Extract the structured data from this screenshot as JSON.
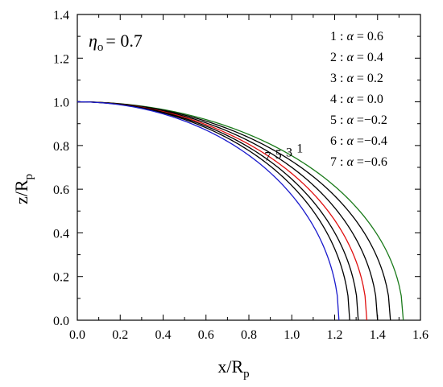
{
  "chart_data": {
    "type": "line",
    "xlabel": "x/R",
    "xlabel_sub": "p",
    "ylabel": "z/R",
    "ylabel_sub": "p",
    "xlim": [
      0.0,
      1.6
    ],
    "ylim": [
      0.0,
      1.4
    ],
    "xticks": [
      "0.0",
      "0.2",
      "0.4",
      "0.6",
      "0.8",
      "1.0",
      "1.2",
      "1.4",
      "1.6"
    ],
    "yticks": [
      "0.0",
      "0.2",
      "0.4",
      "0.6",
      "0.8",
      "1.0",
      "1.2",
      "1.4"
    ],
    "grid": false,
    "annotation": {
      "symbol": "η",
      "subscript": "o",
      "value": "= 0.7"
    },
    "legend": [
      {
        "id": "1",
        "sep": ":",
        "symbol": "α",
        "text": "=  0.6"
      },
      {
        "id": "2",
        "sep": ":",
        "symbol": "α",
        "text": "=  0.4"
      },
      {
        "id": "3",
        "sep": ":",
        "symbol": "α",
        "text": "=  0.2"
      },
      {
        "id": "4",
        "sep": ":",
        "symbol": "α",
        "text": "=  0.0"
      },
      {
        "id": "5",
        "sep": ":",
        "symbol": "α",
        "text": "=−0.2"
      },
      {
        "id": "6",
        "sep": ":",
        "symbol": "α",
        "text": "=−0.4"
      },
      {
        "id": "7",
        "sep": ":",
        "symbol": "α",
        "text": "=−0.6"
      }
    ],
    "series": [
      {
        "label": "1",
        "alpha": 0.6,
        "x_end": 1.52,
        "color": "#1a7a1a",
        "curve_label": "1",
        "label_at_x": 1.0
      },
      {
        "label": "2",
        "alpha": 0.4,
        "x_end": 1.46,
        "color": "#000000"
      },
      {
        "label": "3",
        "alpha": 0.2,
        "x_end": 1.4,
        "color": "#000000",
        "curve_label": "3",
        "label_at_x": 0.95
      },
      {
        "label": "4",
        "alpha": 0.0,
        "x_end": 1.35,
        "color": "#e01010"
      },
      {
        "label": "5",
        "alpha": -0.2,
        "x_end": 1.31,
        "color": "#000000",
        "curve_label": "5",
        "label_at_x": 0.9
      },
      {
        "label": "6",
        "alpha": -0.4,
        "x_end": 1.27,
        "color": "#000000"
      },
      {
        "label": "7",
        "alpha": -0.6,
        "x_end": 1.22,
        "color": "#1a1acc",
        "curve_label": "7",
        "label_at_x": 0.85
      }
    ],
    "series_shape": "z = sqrt(1 - (x/x_end)^2)"
  }
}
